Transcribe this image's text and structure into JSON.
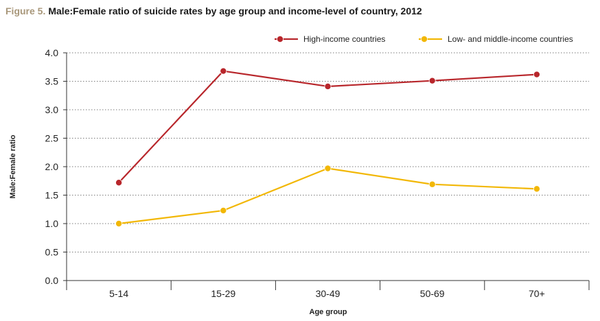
{
  "figure_label": "Figure 5.",
  "colors": {
    "figure_label": "#a8977a",
    "high_income": "#b8262b",
    "low_middle_income": "#f2b705",
    "grid": "#7a7a7a",
    "axis": "#333333"
  },
  "chart_data": {
    "type": "line",
    "title": "Male:Female ratio of suicide rates by age group and income-level of country, 2012",
    "xlabel": "Age group",
    "ylabel": "Male:Female ratio",
    "categories": [
      "5-14",
      "15-29",
      "30-49",
      "50-69",
      "70+"
    ],
    "ylim": [
      0,
      4
    ],
    "yticks": [
      "0.0",
      "0.5",
      "1.0",
      "1.5",
      "2.0",
      "2.5",
      "3.0",
      "3.5",
      "4.0"
    ],
    "grid": "horizontal dotted",
    "legend_position": "top-right",
    "series": [
      {
        "name": "High-income countries",
        "color": "#b8262b",
        "values": [
          1.72,
          3.68,
          3.41,
          3.51,
          3.62
        ]
      },
      {
        "name": "Low- and middle-income countries",
        "color": "#f2b705",
        "values": [
          1.0,
          1.23,
          1.97,
          1.69,
          1.61
        ]
      }
    ]
  }
}
